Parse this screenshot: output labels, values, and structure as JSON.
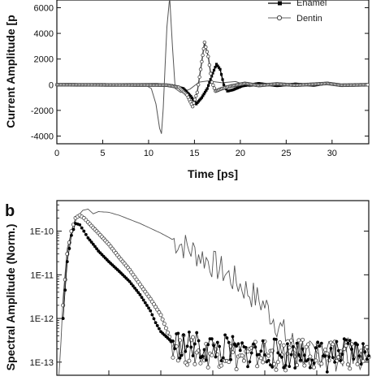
{
  "chart_data": [
    {
      "panel": "",
      "type": "line",
      "ylabel": "Current Amplitude [p",
      "xlabel": "Time [ps]",
      "xlim": [
        0,
        34
      ],
      "ylim": [
        -4600,
        6600
      ],
      "xticks": [
        0,
        5,
        10,
        15,
        20,
        25,
        30
      ],
      "yticks": [
        -4000,
        -2000,
        0,
        2000,
        4000,
        6000
      ],
      "ytick_labels": [
        "-4000",
        "-2000",
        "0",
        "2000",
        "4000",
        "6000"
      ],
      "legend_position": "top-right",
      "series": [
        {
          "name": "",
          "style": "thin-line",
          "color": "#555555",
          "points": [
            [
              0,
              0
            ],
            [
              8,
              0
            ],
            [
              9.5,
              40
            ],
            [
              10.3,
              -300
            ],
            [
              10.8,
              -1500
            ],
            [
              11.2,
              -3400
            ],
            [
              11.4,
              -3800
            ],
            [
              11.6,
              -1800
            ],
            [
              11.8,
              1500
            ],
            [
              12.0,
              4500
            ],
            [
              12.3,
              6800
            ],
            [
              12.6,
              3000
            ],
            [
              12.9,
              -300
            ],
            [
              13.5,
              -600
            ],
            [
              14.5,
              -350
            ],
            [
              15.5,
              200
            ],
            [
              16.5,
              300
            ],
            [
              18,
              150
            ],
            [
              19.5,
              250
            ],
            [
              21,
              -150
            ],
            [
              23,
              80
            ],
            [
              25,
              -80
            ],
            [
              27,
              60
            ],
            [
              29,
              30
            ],
            [
              31,
              -40
            ],
            [
              34,
              0
            ]
          ]
        },
        {
          "name": "Enamel",
          "style": "line-filled-markers",
          "color": "#000000",
          "points": [
            [
              0,
              0
            ],
            [
              11,
              20
            ],
            [
              12.5,
              -60
            ],
            [
              13.8,
              -300
            ],
            [
              14.6,
              -900
            ],
            [
              15.2,
              -1500
            ],
            [
              15.8,
              -1000
            ],
            [
              16.4,
              -300
            ],
            [
              17.0,
              900
            ],
            [
              17.4,
              1600
            ],
            [
              17.8,
              1200
            ],
            [
              18.2,
              0
            ],
            [
              18.6,
              -500
            ],
            [
              19.2,
              -400
            ],
            [
              20.2,
              -100
            ],
            [
              22,
              100
            ],
            [
              24,
              -80
            ],
            [
              26,
              60
            ],
            [
              28,
              -50
            ],
            [
              29.5,
              120
            ],
            [
              31,
              -60
            ],
            [
              34,
              0
            ]
          ]
        },
        {
          "name": "Dentin",
          "style": "line-open-markers",
          "color": "#444444",
          "points": [
            [
              0,
              0
            ],
            [
              12,
              -30
            ],
            [
              13.3,
              -200
            ],
            [
              14.2,
              -800
            ],
            [
              14.8,
              -1700
            ],
            [
              15.3,
              -600
            ],
            [
              15.8,
              1800
            ],
            [
              16.1,
              3300
            ],
            [
              16.5,
              2200
            ],
            [
              16.9,
              200
            ],
            [
              17.3,
              -500
            ],
            [
              18,
              -300
            ],
            [
              19,
              -100
            ],
            [
              20.5,
              100
            ],
            [
              22,
              -60
            ],
            [
              24,
              60
            ],
            [
              26,
              -40
            ],
            [
              29.5,
              100
            ],
            [
              31,
              -40
            ],
            [
              34,
              0
            ]
          ]
        }
      ]
    },
    {
      "panel": "b",
      "type": "line",
      "ylabel": "Spectral Amplitude (Norm.)",
      "xlabel": "",
      "yscale": "log",
      "xlim": [
        0,
        3
      ],
      "ylim": [
        5e-14,
        5e-10
      ],
      "yticks": [
        1e-13,
        1e-12,
        1e-11,
        1e-10
      ],
      "ytick_labels": [
        "1E-13",
        "1E-12",
        "1E-11",
        "1E-10"
      ],
      "series": [
        {
          "name": "",
          "style": "thin-line",
          "color": "#555555",
          "points": [
            [
              0.02,
              3e-14
            ],
            [
              0.06,
              3e-12
            ],
            [
              0.1,
              4e-11
            ],
            [
              0.15,
              1.2e-10
            ],
            [
              0.2,
              2.2e-10
            ],
            [
              0.25,
              3e-10
            ],
            [
              0.3,
              3.2e-10
            ],
            [
              0.35,
              2.5e-10
            ],
            [
              0.4,
              2.8e-10
            ],
            [
              0.5,
              2.7e-10
            ],
            [
              0.6,
              2.3e-10
            ],
            [
              0.8,
              1.5e-10
            ],
            [
              1.0,
              9e-11
            ],
            [
              1.2,
              5e-11
            ],
            [
              1.4,
              2.6e-11
            ],
            [
              1.6,
              1.2e-11
            ],
            [
              1.8,
              5e-12
            ],
            [
              2.0,
              2e-12
            ],
            [
              2.1,
              9e-13
            ],
            [
              2.2,
              4e-13
            ],
            [
              2.3,
              2.2e-13
            ],
            [
              2.4,
              1.5e-13
            ],
            [
              2.5,
              1.3e-13
            ],
            [
              2.6,
              2.5e-13
            ],
            [
              2.7,
              1.2e-13
            ],
            [
              2.8,
              2e-13
            ],
            [
              2.9,
              1.4e-13
            ],
            [
              3.0,
              1.8e-13
            ]
          ]
        },
        {
          "name": "Dentin",
          "style": "open-markers",
          "color": "#444444",
          "points": [
            [
              0.06,
              2e-12
            ],
            [
              0.1,
              3e-11
            ],
            [
              0.14,
              1e-10
            ],
            [
              0.18,
              2e-10
            ],
            [
              0.22,
              2.3e-10
            ],
            [
              0.26,
              2e-10
            ],
            [
              0.3,
              1.6e-10
            ],
            [
              0.35,
              1.2e-10
            ],
            [
              0.4,
              9e-11
            ],
            [
              0.5,
              5e-11
            ],
            [
              0.6,
              2.5e-11
            ],
            [
              0.7,
              1.3e-11
            ],
            [
              0.8,
              6e-12
            ],
            [
              0.9,
              2.8e-12
            ],
            [
              1.0,
              1.2e-12
            ],
            [
              1.05,
              6e-13
            ],
            [
              1.1,
              3e-13
            ],
            [
              1.2,
              2e-13
            ],
            [
              1.4,
              1.5e-13
            ],
            [
              1.6,
              1.8e-13
            ],
            [
              1.8,
              1.2e-13
            ],
            [
              2.0,
              1.6e-13
            ],
            [
              2.2,
              1.3e-13
            ],
            [
              2.4,
              1.7e-13
            ],
            [
              2.6,
              1.2e-13
            ],
            [
              2.8,
              1.6e-13
            ],
            [
              3.0,
              1.3e-13
            ]
          ]
        },
        {
          "name": "Enamel",
          "style": "filled-markers",
          "color": "#000000",
          "points": [
            [
              0.06,
              1e-12
            ],
            [
              0.1,
              2e-11
            ],
            [
              0.14,
              8e-11
            ],
            [
              0.18,
              1.5e-10
            ],
            [
              0.22,
              1.4e-10
            ],
            [
              0.26,
              1e-10
            ],
            [
              0.3,
              7e-11
            ],
            [
              0.35,
              5e-11
            ],
            [
              0.4,
              3.5e-11
            ],
            [
              0.5,
              2e-11
            ],
            [
              0.6,
              1.2e-11
            ],
            [
              0.7,
              7e-12
            ],
            [
              0.8,
              3.5e-12
            ],
            [
              0.9,
              1.5e-12
            ],
            [
              0.95,
              8e-13
            ],
            [
              1.0,
              5e-13
            ],
            [
              1.1,
              3e-13
            ],
            [
              1.2,
              2.5e-13
            ],
            [
              1.4,
              2.2e-13
            ],
            [
              1.6,
              2e-13
            ],
            [
              1.8,
              1.6e-13
            ],
            [
              2.0,
              1.8e-13
            ],
            [
              2.2,
              1.4e-13
            ],
            [
              2.4,
              1.7e-13
            ],
            [
              2.6,
              1.3e-13
            ],
            [
              2.8,
              1.6e-13
            ],
            [
              3.0,
              1.4e-13
            ]
          ]
        }
      ]
    }
  ]
}
